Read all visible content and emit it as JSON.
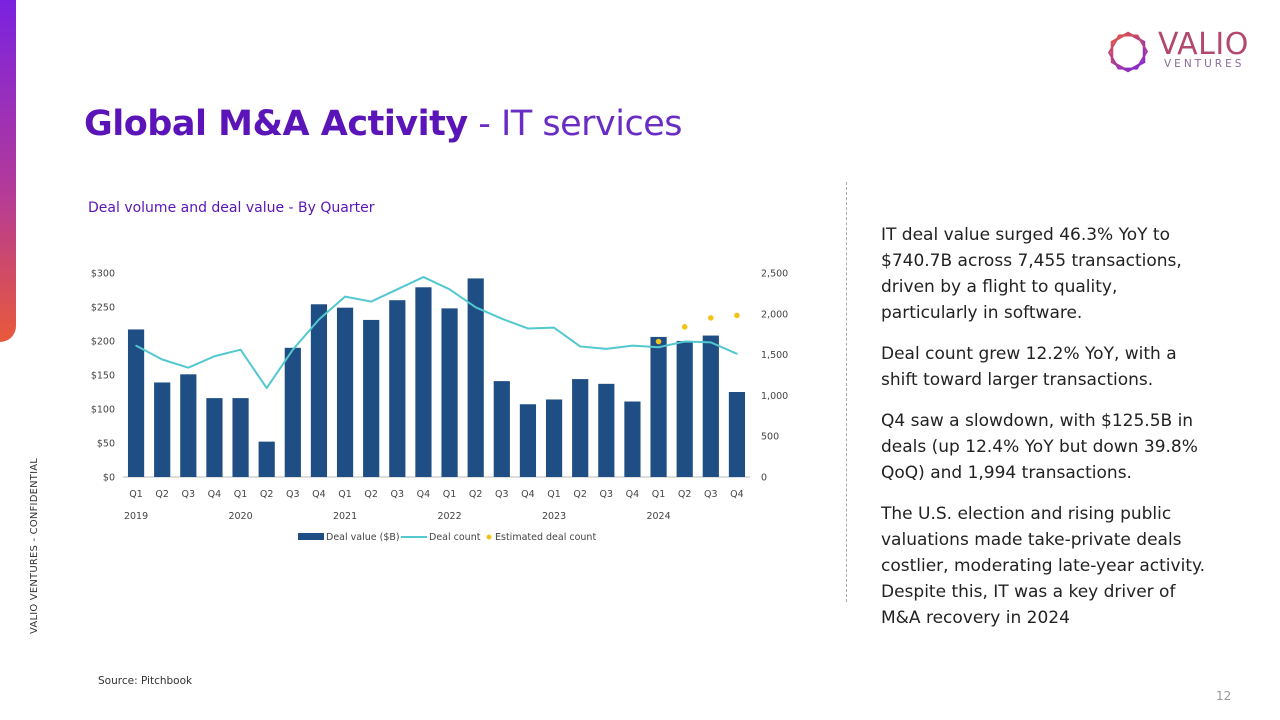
{
  "brand": {
    "name": "VALIO",
    "sub": "VENTURES",
    "side_label": "VALIO VENTURES - CONFIDENTIAL",
    "accent_colors": [
      "#7a22e0",
      "#e8593a"
    ]
  },
  "slide": {
    "title_bold": "Global M&A Activity",
    "title_rest": " - IT services",
    "subtitle": "Deal volume and deal value - By Quarter",
    "source": "Source: Pitchbook",
    "page_number": "12"
  },
  "commentary": [
    "IT deal value surged 46.3% YoY to $740.7B across 7,455 transactions, driven by a flight to quality, particularly in software.",
    "Deal count grew 12.2% YoY, with a shift toward larger transactions.",
    "Q4 saw a slowdown, with $125.5B in deals (up 12.4% YoY but down 39.8% QoQ) and 1,994 transactions.",
    " The U.S. election and rising public valuations made take-private deals costlier, moderating late-year activity. Despite this, IT was a key driver of M&A recovery in 2024"
  ],
  "chart_data": {
    "type": "bar",
    "categories": [
      "Q1",
      "Q2",
      "Q3",
      "Q4",
      "Q1",
      "Q2",
      "Q3",
      "Q4",
      "Q1",
      "Q2",
      "Q3",
      "Q4",
      "Q1",
      "Q2",
      "Q3",
      "Q4",
      "Q1",
      "Q2",
      "Q3",
      "Q4",
      "Q1",
      "Q2",
      "Q3",
      "Q4"
    ],
    "years": [
      {
        "label": "2019",
        "index": 0
      },
      {
        "label": "2020",
        "index": 4
      },
      {
        "label": "2021",
        "index": 8
      },
      {
        "label": "2022",
        "index": 12
      },
      {
        "label": "2023",
        "index": 16
      },
      {
        "label": "2024",
        "index": 20
      }
    ],
    "series": [
      {
        "name": "Deal value ($B)",
        "kind": "bar",
        "axis": "left",
        "color": "#1f4e84",
        "values": [
          217,
          139,
          151,
          116,
          116,
          52,
          190,
          254,
          249,
          231,
          260,
          279,
          248,
          292,
          141,
          107,
          114,
          144,
          137,
          111,
          206,
          200,
          208,
          125
        ]
      },
      {
        "name": "Deal count",
        "kind": "line",
        "axis": "right",
        "color": "#52c8cf",
        "values": [
          1610,
          1440,
          1340,
          1480,
          1560,
          1090,
          1560,
          1930,
          2210,
          2150,
          2300,
          2450,
          2300,
          2080,
          1940,
          1820,
          1830,
          1600,
          1570,
          1610,
          1590,
          1660,
          1650,
          1510
        ]
      },
      {
        "name": "Estimated deal count",
        "kind": "scatter",
        "axis": "right",
        "color": "#f2c21b",
        "values": [
          null,
          null,
          null,
          null,
          null,
          null,
          null,
          null,
          null,
          null,
          null,
          null,
          null,
          null,
          null,
          null,
          null,
          null,
          null,
          null,
          1660,
          1840,
          1950,
          1980
        ]
      }
    ],
    "y_left": {
      "min": 0,
      "max": 300,
      "ticks": [
        "$0",
        "$50",
        "$100",
        "$150",
        "$200",
        "$250",
        "$300"
      ]
    },
    "y_right": {
      "min": 0,
      "max": 2500,
      "ticks": [
        "0",
        "500",
        "1,000",
        "1,500",
        "2,000",
        "2,500"
      ]
    },
    "legend_position": "bottom",
    "grid": false
  }
}
